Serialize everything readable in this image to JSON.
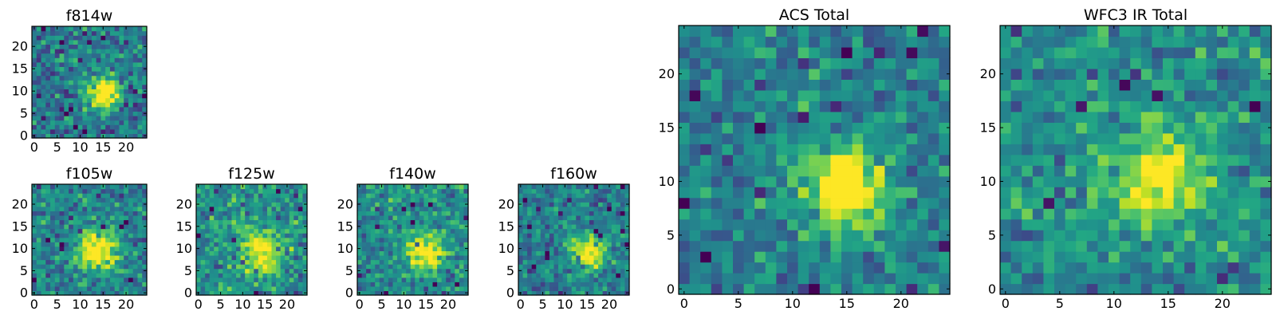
{
  "chart_data": [
    {
      "type": "heatmap",
      "title": "f814w",
      "xticks": [
        0,
        5,
        10,
        15,
        20
      ],
      "yticks": [
        0,
        5,
        10,
        15,
        20
      ],
      "xlim": [
        0,
        24
      ],
      "ylim": [
        0,
        24
      ],
      "grid": false,
      "source": {
        "peak": [
          15,
          9.5
        ],
        "sigma": 2.3,
        "amp": 0.85,
        "noise": 0.17,
        "base": 0.42,
        "seed": 814
      }
    },
    {
      "type": "heatmap",
      "title": "ACS Total",
      "xticks": [
        0,
        5,
        10,
        15,
        20
      ],
      "yticks": [
        0,
        5,
        10,
        15,
        20
      ],
      "xlim": [
        0,
        24
      ],
      "ylim": [
        0,
        24
      ],
      "grid": false,
      "source": {
        "peak": [
          15,
          9.5
        ],
        "sigma": 2.5,
        "amp": 0.8,
        "noise": 0.14,
        "base": 0.45,
        "seed": 101
      }
    },
    {
      "type": "heatmap",
      "title": "WFC3 IR Total",
      "xticks": [
        0,
        5,
        10,
        15,
        20
      ],
      "yticks": [
        0,
        5,
        10,
        15,
        20
      ],
      "xlim": [
        0,
        24
      ],
      "ylim": [
        0,
        24
      ],
      "grid": false,
      "source": {
        "peak": [
          14,
          10.5
        ],
        "sigma": 3.0,
        "amp": 0.55,
        "noise": 0.15,
        "base": 0.5,
        "seed": 202
      }
    },
    {
      "type": "heatmap",
      "title": "f105w",
      "xticks": [
        0,
        5,
        10,
        15,
        20
      ],
      "yticks": [
        0,
        5,
        10,
        15,
        20
      ],
      "xlim": [
        0,
        24
      ],
      "ylim": [
        0,
        24
      ],
      "grid": false,
      "source": {
        "peak": [
          14,
          9.5
        ],
        "sigma": 3.0,
        "amp": 0.7,
        "noise": 0.15,
        "base": 0.45,
        "seed": 105
      }
    },
    {
      "type": "heatmap",
      "title": "f125w",
      "xticks": [
        0,
        5,
        10,
        15,
        20
      ],
      "yticks": [
        0,
        5,
        10,
        15,
        20
      ],
      "xlim": [
        0,
        24
      ],
      "ylim": [
        0,
        24
      ],
      "grid": false,
      "source": {
        "peak": [
          14,
          9.5
        ],
        "sigma": 3.5,
        "amp": 0.55,
        "noise": 0.16,
        "base": 0.5,
        "seed": 125
      }
    },
    {
      "type": "heatmap",
      "title": "f140w",
      "xticks": [
        0,
        5,
        10,
        15,
        20
      ],
      "yticks": [
        0,
        5,
        10,
        15,
        20
      ],
      "xlim": [
        0,
        24
      ],
      "ylim": [
        0,
        24
      ],
      "grid": false,
      "source": {
        "peak": [
          14.5,
          9.5
        ],
        "sigma": 3.0,
        "amp": 0.6,
        "noise": 0.15,
        "base": 0.48,
        "seed": 140
      }
    },
    {
      "type": "heatmap",
      "title": "f160w",
      "xticks": [
        0,
        5,
        10,
        15,
        20
      ],
      "yticks": [
        0,
        5,
        10,
        15,
        20
      ],
      "xlim": [
        0,
        24
      ],
      "ylim": [
        0,
        24
      ],
      "grid": false,
      "source": {
        "peak": [
          15.5,
          9
        ],
        "sigma": 2.8,
        "amp": 0.65,
        "noise": 0.14,
        "base": 0.42,
        "seed": 160
      }
    }
  ],
  "colors": {
    "colormap": "viridis",
    "frame": "#000000",
    "background": "#ffffff"
  }
}
